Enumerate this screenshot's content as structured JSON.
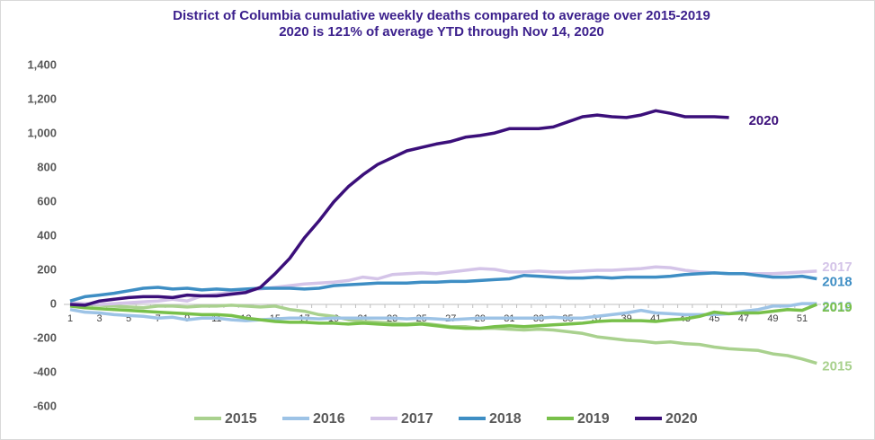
{
  "chart_data": {
    "type": "line",
    "title": "District of Columbia cumulative weekly deaths compared to average over 2015-2019",
    "subtitle": "2020 is 121% of average YTD through Nov 14, 2020",
    "categories": [
      1,
      null,
      3,
      null,
      5,
      null,
      7,
      null,
      9,
      null,
      11,
      null,
      13,
      null,
      15,
      null,
      17,
      null,
      19,
      null,
      21,
      null,
      23,
      null,
      25,
      null,
      27,
      null,
      29,
      null,
      31,
      null,
      33,
      null,
      35,
      null,
      37,
      null,
      39,
      null,
      41,
      null,
      43,
      null,
      45,
      null,
      47,
      null,
      49,
      null,
      51,
      null
    ],
    "ylim": [
      -600,
      1400
    ],
    "yticks": [
      {
        "value": -600,
        "label": "-600"
      },
      {
        "value": -400,
        "label": "-400"
      },
      {
        "value": -200,
        "label": "-200"
      },
      0,
      200,
      400,
      600,
      800,
      {
        "value": 1000,
        "label": "1,000"
      },
      {
        "value": 1200,
        "label": "1,200"
      },
      {
        "value": 1400,
        "label": "1,400"
      }
    ],
    "grid": false,
    "legend": "bottom",
    "series": [
      {
        "name": "2015",
        "color": "#a9d18e",
        "values": [
          10,
          0,
          -5,
          -10,
          -15,
          -20,
          -10,
          -10,
          -15,
          -10,
          -10,
          -5,
          -10,
          -15,
          -10,
          -30,
          -40,
          -60,
          -70,
          -90,
          -100,
          -105,
          -110,
          -115,
          -110,
          -120,
          -130,
          -130,
          -140,
          -140,
          -145,
          -150,
          -145,
          -150,
          -160,
          -170,
          -190,
          -200,
          -210,
          -215,
          -225,
          -220,
          -230,
          -235,
          -250,
          -260,
          -265,
          -270,
          -290,
          -300,
          -320,
          -345
        ]
      },
      {
        "name": "2016",
        "color": "#9dc3e6",
        "values": [
          -30,
          -45,
          -50,
          -60,
          -65,
          -70,
          -80,
          -75,
          -90,
          -80,
          -80,
          -90,
          -95,
          -90,
          -85,
          -80,
          -80,
          -85,
          -80,
          -80,
          -80,
          -80,
          -80,
          -85,
          -80,
          -85,
          -90,
          -85,
          -80,
          -80,
          -80,
          -80,
          -80,
          -75,
          -80,
          -80,
          -70,
          -60,
          -50,
          -35,
          -50,
          -55,
          -60,
          -60,
          -60,
          -55,
          -40,
          -30,
          -10,
          -10,
          5,
          5
        ]
      },
      {
        "name": "2017",
        "color": "#d4c4e8",
        "values": [
          10,
          5,
          0,
          5,
          10,
          15,
          20,
          30,
          20,
          50,
          60,
          70,
          80,
          90,
          100,
          110,
          120,
          125,
          130,
          140,
          160,
          150,
          175,
          180,
          185,
          180,
          190,
          200,
          210,
          205,
          190,
          190,
          195,
          190,
          190,
          195,
          200,
          200,
          205,
          210,
          220,
          215,
          200,
          190,
          185,
          180,
          180,
          180,
          180,
          185,
          190,
          195
        ]
      },
      {
        "name": "2018",
        "color": "#3e8ec4",
        "values": [
          20,
          45,
          55,
          65,
          80,
          95,
          100,
          90,
          95,
          85,
          90,
          85,
          90,
          95,
          95,
          95,
          90,
          95,
          110,
          115,
          120,
          125,
          125,
          125,
          130,
          130,
          135,
          135,
          140,
          145,
          150,
          170,
          165,
          160,
          155,
          155,
          160,
          155,
          160,
          160,
          160,
          165,
          175,
          180,
          185,
          180,
          180,
          170,
          160,
          160,
          165,
          150
        ]
      },
      {
        "name": "2019",
        "color": "#78c04a",
        "values": [
          -10,
          -20,
          -25,
          -30,
          -35,
          -40,
          -45,
          -50,
          -55,
          -60,
          -60,
          -65,
          -80,
          -90,
          -100,
          -105,
          -105,
          -110,
          -110,
          -115,
          -110,
          -115,
          -120,
          -120,
          -115,
          -125,
          -135,
          -140,
          -140,
          -130,
          -125,
          -130,
          -125,
          -120,
          -115,
          -110,
          -100,
          -95,
          -95,
          -95,
          -100,
          -90,
          -85,
          -70,
          -45,
          -55,
          -50,
          -50,
          -40,
          -30,
          -35,
          0
        ]
      },
      {
        "name": "2020",
        "color": "#3b0f7a",
        "values": [
          0,
          -5,
          20,
          30,
          40,
          45,
          45,
          40,
          55,
          50,
          50,
          60,
          70,
          100,
          180,
          270,
          390,
          490,
          600,
          690,
          760,
          820,
          860,
          900,
          920,
          940,
          955,
          980,
          990,
          1005,
          1030,
          1030,
          1030,
          1040,
          1070,
          1100,
          1110,
          1100,
          1095,
          1110,
          1135,
          1120,
          1100,
          1100,
          1100,
          1095,
          null,
          null,
          null,
          null,
          null,
          null
        ]
      }
    ]
  }
}
